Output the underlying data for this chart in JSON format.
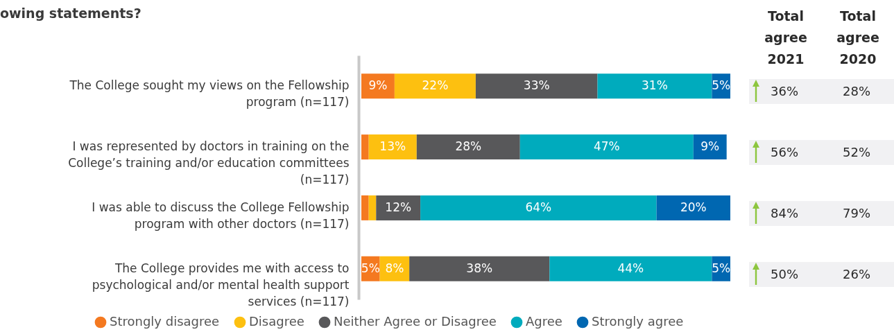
{
  "chart_data": {
    "type": "bar",
    "orientation": "horizontal",
    "stacked": true,
    "title": "owing statements?",
    "categories": [
      "The College sought my views on the Fellowship program (n=117)",
      "I was represented by doctors in training on the College’s training and/or education committees (n=117)",
      "I was able to discuss the College Fellowship program with other doctors (n=117)",
      "The College provides me with access to psychological and/or mental health support services (n=117)"
    ],
    "series": [
      {
        "name": "Strongly disagree",
        "color": "#f47920",
        "values": [
          9,
          2,
          2,
          5
        ],
        "value_labels": [
          "9%",
          null,
          null,
          "5%"
        ]
      },
      {
        "name": "Disagree",
        "color": "#fdc010",
        "values": [
          22,
          13,
          2,
          8
        ],
        "value_labels": [
          "22%",
          "13%",
          null,
          "8%"
        ]
      },
      {
        "name": "Neither Agree or Disagree",
        "color": "#58585a",
        "values": [
          33,
          28,
          12,
          38
        ],
        "value_labels": [
          "33%",
          "28%",
          "12%",
          "38%"
        ]
      },
      {
        "name": "Agree",
        "color": "#00abbd",
        "values": [
          31,
          47,
          64,
          44
        ],
        "value_labels": [
          "31%",
          "47%",
          "64%",
          "44%"
        ]
      },
      {
        "name": "Strongly agree",
        "color": "#0067b1",
        "values": [
          5,
          9,
          20,
          5
        ],
        "value_labels": [
          "5%",
          "9%",
          "20%",
          "5%"
        ]
      }
    ],
    "xlim": [
      0,
      100
    ],
    "tick_labels": "y",
    "legend": "bottom",
    "annotations": [
      "Total agree 2021",
      "Total agree 2020",
      "36%",
      "28%",
      "56%",
      "52%",
      "84%",
      "79%",
      "50%",
      "26%"
    ]
  }
}
